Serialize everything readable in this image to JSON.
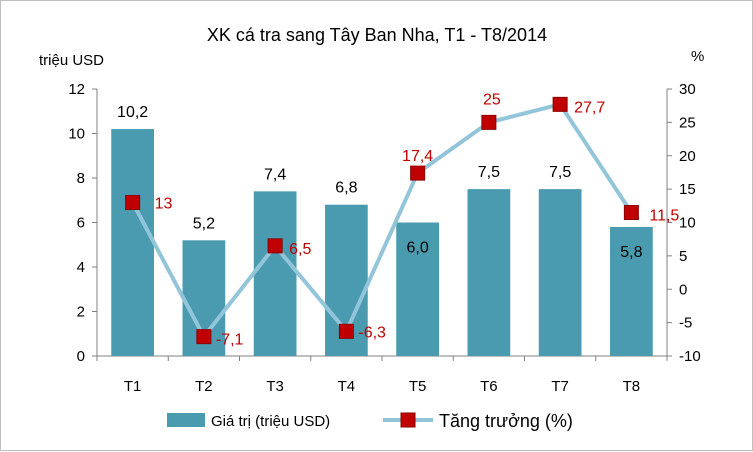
{
  "chart_data": {
    "type": "bar+line",
    "title": "XK cá tra sang Tây Ban Nha, T1 - T8/2014",
    "categories": [
      "T1",
      "T2",
      "T3",
      "T4",
      "T5",
      "T6",
      "T7",
      "T8"
    ],
    "series": [
      {
        "name": "Giá trị (triệu USD)",
        "type": "bar",
        "axis": "left",
        "values": [
          10.2,
          5.2,
          7.4,
          6.8,
          6.0,
          7.5,
          7.5,
          5.8
        ],
        "labels": [
          "10,2",
          "5,2",
          "7,4",
          "6,8",
          "6,0",
          "7,5",
          "7,5",
          "5,8"
        ],
        "color": "#4a9bb0"
      },
      {
        "name": "Tăng trưởng (%)",
        "type": "line",
        "axis": "right",
        "values": [
          13,
          -7.1,
          6.5,
          -6.3,
          17.4,
          25,
          27.7,
          11.5
        ],
        "labels": [
          "13",
          "-7,1",
          "6,5",
          "-6,3",
          "17,4",
          "25",
          "27,7",
          "11,5"
        ],
        "line_color": "#92c5d9",
        "marker_color": "#c00000",
        "label_color": "#c00000"
      }
    ],
    "y_left": {
      "label": "triệu USD",
      "range": [
        0,
        12
      ],
      "ticks": [
        0,
        2,
        4,
        6,
        8,
        10,
        12
      ],
      "tick_labels": [
        "0",
        "2",
        "4",
        "6",
        "8",
        "10",
        "12"
      ]
    },
    "y_right": {
      "label": "%",
      "range": [
        -10,
        30
      ],
      "ticks": [
        -10,
        -5,
        0,
        5,
        10,
        15,
        20,
        25,
        30
      ],
      "tick_labels": [
        "-10",
        "-5",
        "0",
        "5",
        "10",
        "15",
        "20",
        "25",
        "30"
      ]
    },
    "grid": false,
    "legend_position": "bottom"
  }
}
